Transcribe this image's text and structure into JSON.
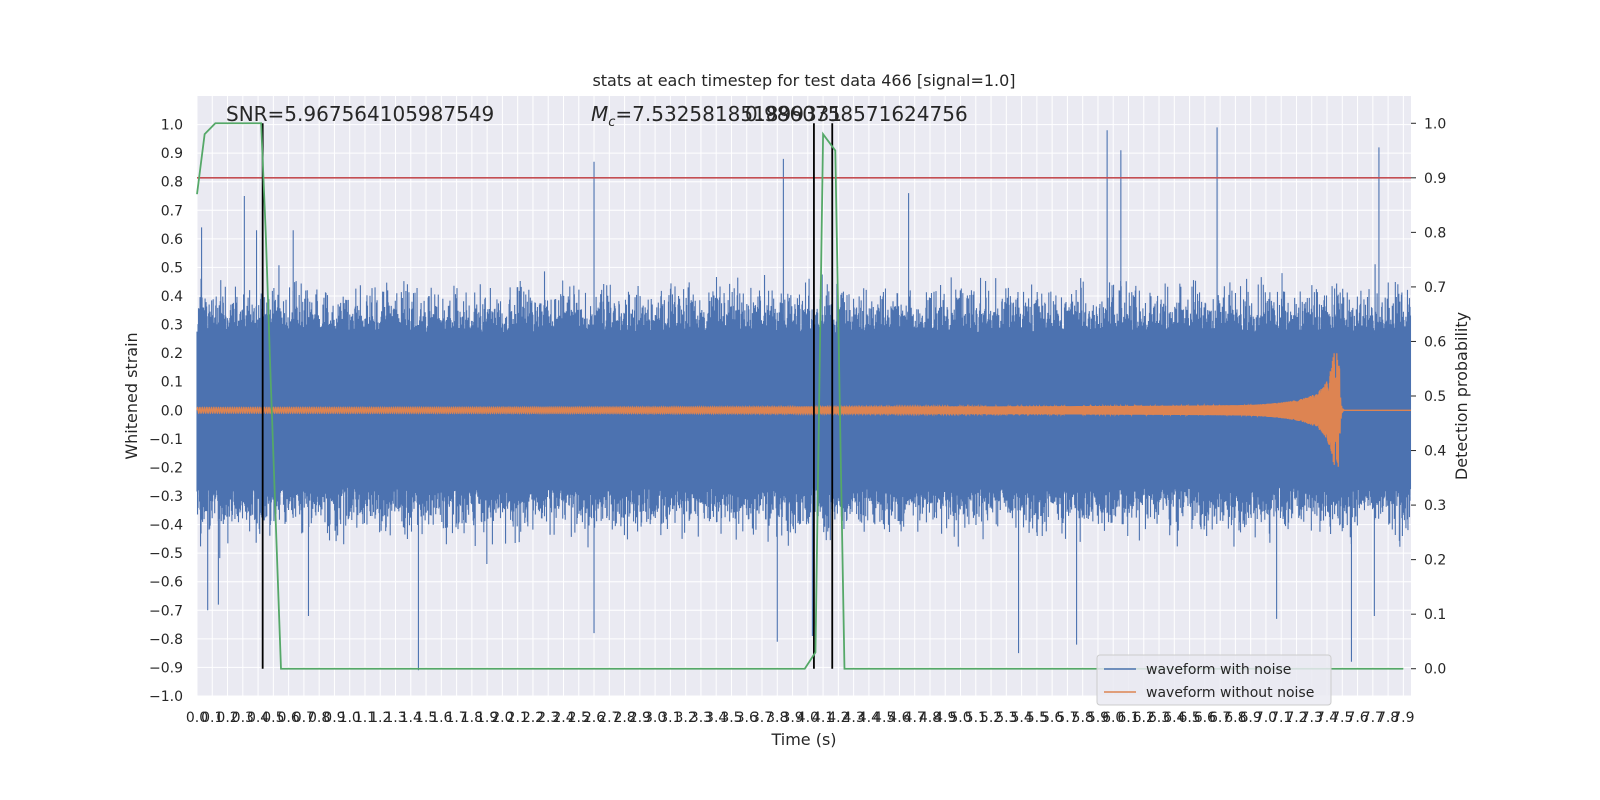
{
  "chart_data": {
    "type": "line",
    "title": "stats at each timestep for test data 466 [signal=1.0]",
    "xlabel": "Time (s)",
    "ylabel": "Whitened strain",
    "y2label": "Detection probability",
    "xlim": [
      0.0,
      7.95
    ],
    "ylim": [
      -1.0,
      1.1
    ],
    "y2lim": [
      -0.05,
      1.05
    ],
    "x_ticks": [
      "0.0",
      "0.1",
      "0.2",
      "0.3",
      "0.4",
      "0.5",
      "0.6",
      "0.7",
      "0.8",
      "0.9",
      "1.0",
      "1.1",
      "1.2",
      "1.3",
      "1.4",
      "1.5",
      "1.6",
      "1.7",
      "1.8",
      "1.9",
      "2.0",
      "2.1",
      "2.2",
      "2.3",
      "2.4",
      "2.5",
      "2.6",
      "2.7",
      "2.8",
      "2.9",
      "3.0",
      "3.1",
      "3.2",
      "3.3",
      "3.4",
      "3.5",
      "3.6",
      "3.7",
      "3.8",
      "3.9",
      "4.0",
      "4.1",
      "4.2",
      "4.3",
      "4.4",
      "4.5",
      "4.6",
      "4.7",
      "4.8",
      "4.9",
      "5.0",
      "5.1",
      "5.2",
      "5.3",
      "5.4",
      "5.5",
      "5.6",
      "5.7",
      "5.8",
      "5.9",
      "6.0",
      "6.1",
      "6.2",
      "6.3",
      "6.4",
      "6.5",
      "6.6",
      "6.7",
      "6.8",
      "6.9",
      "7.0",
      "7.1",
      "7.2",
      "7.3",
      "7.4",
      "7.5",
      "7.6",
      "7.7",
      "7.8",
      "7.9"
    ],
    "y_ticks": [
      "-1.0",
      "-0.9",
      "-0.8",
      "-0.7",
      "-0.6",
      "-0.5",
      "-0.4",
      "-0.3",
      "-0.2",
      "-0.1",
      "0.0",
      "0.1",
      "0.2",
      "0.3",
      "0.4",
      "0.5",
      "0.6",
      "0.7",
      "0.8",
      "0.9",
      "1.0"
    ],
    "y2_ticks": [
      "0.0",
      "0.1",
      "0.2",
      "0.3",
      "0.4",
      "0.5",
      "0.6",
      "0.7",
      "0.8",
      "0.9",
      "1.0"
    ],
    "annotations": {
      "snr": "SNR=5.967564105987549",
      "mc": "=7.532581851899331",
      "mc_symbol": "M",
      "mc_subscript": "c",
      "overlap": "0.9860758571624756"
    },
    "threshold_probability": 0.9,
    "vertical_markers_s": [
      0.43,
      4.04,
      4.16
    ],
    "series": [
      {
        "name": "waveform with noise",
        "color": "#4c72b0",
        "axis": "left",
        "envelope_abs": 0.27,
        "spikes": [
          [
            0.03,
            0.64
          ],
          [
            0.07,
            -0.7
          ],
          [
            0.14,
            -0.68
          ],
          [
            0.31,
            0.75
          ],
          [
            0.39,
            0.63
          ],
          [
            0.63,
            0.63
          ],
          [
            0.73,
            -0.72
          ],
          [
            1.45,
            -0.91
          ],
          [
            2.6,
            0.87
          ],
          [
            2.6,
            -0.78
          ],
          [
            3.8,
            -0.81
          ],
          [
            3.84,
            0.88
          ],
          [
            4.03,
            -0.79
          ],
          [
            4.66,
            0.76
          ],
          [
            5.38,
            -0.85
          ],
          [
            5.76,
            -0.82
          ],
          [
            5.96,
            0.98
          ],
          [
            6.05,
            0.91
          ],
          [
            6.68,
            0.99
          ],
          [
            7.07,
            -0.73
          ],
          [
            7.74,
            0.92
          ],
          [
            7.56,
            -0.88
          ],
          [
            7.71,
            -0.72
          ]
        ]
      },
      {
        "name": "waveform without noise",
        "color": "#dd8452",
        "axis": "left",
        "chirp_start_amp": 0.01,
        "chirp_peak_amp": 0.2,
        "merger_s": 7.48
      },
      {
        "name": "detection probability",
        "color": "#55a868",
        "axis": "right",
        "x": [
          0.0,
          0.05,
          0.12,
          0.2,
          0.42,
          0.45,
          0.48,
          0.55,
          0.6,
          3.98,
          4.05,
          4.1,
          4.18,
          4.24,
          7.9
        ],
        "y": [
          0.87,
          0.98,
          1.0,
          1.0,
          1.0,
          0.8,
          0.55,
          0.0,
          0.0,
          0.0,
          0.03,
          0.98,
          0.95,
          0.0,
          0.0
        ]
      }
    ],
    "threshold_color": "#c44e52",
    "legend": [
      "waveform with noise",
      "waveform without noise"
    ],
    "legend_placement": "lower right",
    "grid": true
  }
}
